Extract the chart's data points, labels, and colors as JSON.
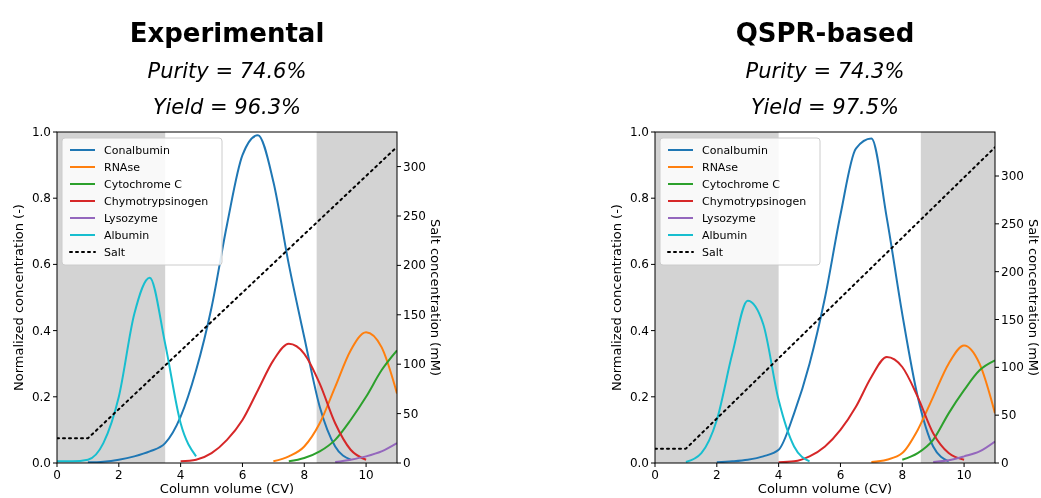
{
  "chart_data": [
    {
      "type": "line",
      "title": "Experimental",
      "subtitle": "Purity = 74.6%",
      "annotations": [
        "Yield = 96.3%"
      ],
      "xlabel": "Column volume (CV)",
      "ylabel": "Normalized concentration (-)",
      "y2label": "Salt concentration (mM)",
      "legend": "top left",
      "x": [
        0,
        0.5,
        1,
        1.5,
        2,
        2.5,
        3,
        3.5,
        4,
        4.5,
        5,
        5.5,
        6,
        6.5,
        7,
        7.5,
        8,
        8.5,
        9,
        9.5,
        10,
        10.5,
        11
      ],
      "xlim": [
        0,
        11
      ],
      "xticks": [
        0,
        2,
        4,
        6,
        8,
        10
      ],
      "ylim": [
        0,
        1
      ],
      "yticks": [
        {
          "value": 0,
          "label": "0.0"
        },
        {
          "value": 0.2,
          "label": "0.2"
        },
        {
          "value": 0.4,
          "label": "0.4"
        },
        {
          "value": 0.6,
          "label": "0.6"
        },
        {
          "value": 0.8,
          "label": "0.8"
        },
        {
          "value": 1,
          "label": "1.0"
        }
      ],
      "y2lim": [
        0,
        335
      ],
      "y2ticks": [
        0,
        50,
        100,
        150,
        200,
        250,
        300
      ],
      "bands": [
        {
          "axis": "x",
          "from": 0,
          "to": 3.5,
          "color": "#d3d3d3"
        },
        {
          "axis": "x",
          "from": 8.4,
          "to": 11,
          "color": "#d3d3d3"
        }
      ],
      "series": [
        {
          "name": "Conalbumin",
          "color": "#1f77b4",
          "values": [
            null,
            null,
            0.002,
            0.004,
            0.01,
            0.02,
            0.035,
            0.06,
            0.14,
            0.28,
            0.47,
            0.72,
            0.93,
            0.99,
            0.85,
            0.6,
            0.38,
            0.17,
            0.05,
            0.01,
            null,
            null,
            null
          ]
        },
        {
          "name": "RNAse",
          "color": "#ff7f0e",
          "values": [
            null,
            null,
            null,
            null,
            null,
            null,
            null,
            null,
            null,
            null,
            null,
            null,
            null,
            null,
            0.005,
            0.02,
            0.05,
            0.12,
            0.23,
            0.34,
            0.395,
            0.35,
            0.21
          ]
        },
        {
          "name": "Cytochrome C",
          "color": "#2ca02c",
          "values": [
            null,
            null,
            null,
            null,
            null,
            null,
            null,
            null,
            null,
            null,
            null,
            null,
            null,
            null,
            null,
            0.005,
            0.015,
            0.035,
            0.07,
            0.13,
            0.2,
            0.28,
            0.34
          ]
        },
        {
          "name": "Chymotrypsinogen",
          "color": "#d62728",
          "values": [
            null,
            null,
            null,
            null,
            null,
            null,
            null,
            null,
            0.005,
            0.01,
            0.03,
            0.07,
            0.13,
            0.22,
            0.31,
            0.36,
            0.33,
            0.24,
            0.12,
            0.04,
            0.01,
            null,
            null
          ]
        },
        {
          "name": "Lysozyme",
          "color": "#9467bd",
          "values": [
            null,
            null,
            null,
            null,
            null,
            null,
            null,
            null,
            null,
            null,
            null,
            null,
            null,
            null,
            null,
            null,
            null,
            null,
            0.003,
            0.01,
            0.02,
            0.035,
            0.06
          ]
        },
        {
          "name": "Albumin",
          "color": "#17becf",
          "values": [
            0.005,
            0.005,
            0.01,
            0.06,
            0.2,
            0.45,
            0.56,
            0.36,
            0.12,
            0.02,
            null,
            null,
            null,
            null,
            null,
            null,
            null,
            null,
            null,
            null,
            null,
            null,
            null
          ]
        },
        {
          "name": "Salt",
          "color": "#000000",
          "axis": "y2",
          "line_style": "dotted",
          "x": [
            0,
            1,
            11
          ],
          "values": [
            25,
            25,
            320
          ]
        }
      ]
    },
    {
      "type": "line",
      "title": "QSPR-based",
      "subtitle": "Purity = 74.3%",
      "annotations": [
        "Yield = 97.5%"
      ],
      "xlabel": "Column volume (CV)",
      "ylabel": "Normalized concentration (-)",
      "y2label": "Salt concentration (mM)",
      "legend": "top left",
      "x": [
        1,
        1.5,
        2,
        2.5,
        3,
        3.5,
        4,
        4.5,
        5,
        5.5,
        6,
        6.5,
        7,
        7.5,
        8,
        8.5,
        9,
        9.5,
        10,
        10.5,
        11
      ],
      "xlim": [
        0,
        11
      ],
      "xticks": [
        0,
        2,
        4,
        6,
        8,
        10
      ],
      "ylim": [
        0,
        1
      ],
      "yticks": [
        {
          "value": 0,
          "label": "0.0"
        },
        {
          "value": 0.2,
          "label": "0.2"
        },
        {
          "value": 0.4,
          "label": "0.4"
        },
        {
          "value": 0.6,
          "label": "0.6"
        },
        {
          "value": 0.8,
          "label": "0.8"
        },
        {
          "value": 1,
          "label": "1.0"
        }
      ],
      "y2lim": [
        0,
        346
      ],
      "y2ticks": [
        0,
        50,
        100,
        150,
        200,
        250,
        300
      ],
      "bands": [
        {
          "axis": "x",
          "from": 0,
          "to": 4,
          "color": "#d3d3d3"
        },
        {
          "axis": "x",
          "from": 8.6,
          "to": 11,
          "color": "#d3d3d3"
        }
      ],
      "series": [
        {
          "name": "Conalbumin",
          "color": "#1f77b4",
          "values": [
            null,
            null,
            0.002,
            0.005,
            0.01,
            0.02,
            0.04,
            0.15,
            0.3,
            0.5,
            0.75,
            0.95,
            0.98,
            0.74,
            0.45,
            0.2,
            0.05,
            0.005,
            null,
            null,
            null
          ]
        },
        {
          "name": "RNAse",
          "color": "#ff7f0e",
          "values": [
            null,
            null,
            null,
            null,
            null,
            null,
            null,
            null,
            null,
            null,
            null,
            null,
            0.003,
            0.01,
            0.03,
            0.1,
            0.2,
            0.3,
            0.355,
            0.3,
            0.15
          ]
        },
        {
          "name": "Cytochrome C",
          "color": "#2ca02c",
          "values": [
            null,
            null,
            null,
            null,
            null,
            null,
            null,
            null,
            null,
            null,
            null,
            null,
            null,
            null,
            0.01,
            0.03,
            0.07,
            0.15,
            0.22,
            0.28,
            0.31
          ]
        },
        {
          "name": "Chymotrypsinogen",
          "color": "#d62728",
          "values": [
            null,
            null,
            null,
            null,
            null,
            null,
            0.002,
            0.005,
            0.02,
            0.05,
            0.1,
            0.17,
            0.26,
            0.32,
            0.29,
            0.2,
            0.09,
            0.03,
            0.01,
            null,
            null
          ]
        },
        {
          "name": "Lysozyme",
          "color": "#9467bd",
          "values": [
            null,
            null,
            null,
            null,
            null,
            null,
            null,
            null,
            null,
            null,
            null,
            null,
            null,
            null,
            null,
            null,
            0.003,
            0.008,
            0.02,
            0.035,
            0.065
          ]
        },
        {
          "name": "Albumin",
          "color": "#17becf",
          "values": [
            0.003,
            0.03,
            0.13,
            0.33,
            0.49,
            0.42,
            0.19,
            0.05,
            0.005,
            null,
            null,
            null,
            null,
            null,
            null,
            null,
            null,
            null,
            null,
            null,
            null
          ]
        },
        {
          "name": "Salt",
          "color": "#000000",
          "axis": "y2",
          "line_style": "dotted",
          "x": [
            0,
            1,
            11
          ],
          "values": [
            15,
            15,
            330
          ]
        }
      ]
    }
  ]
}
